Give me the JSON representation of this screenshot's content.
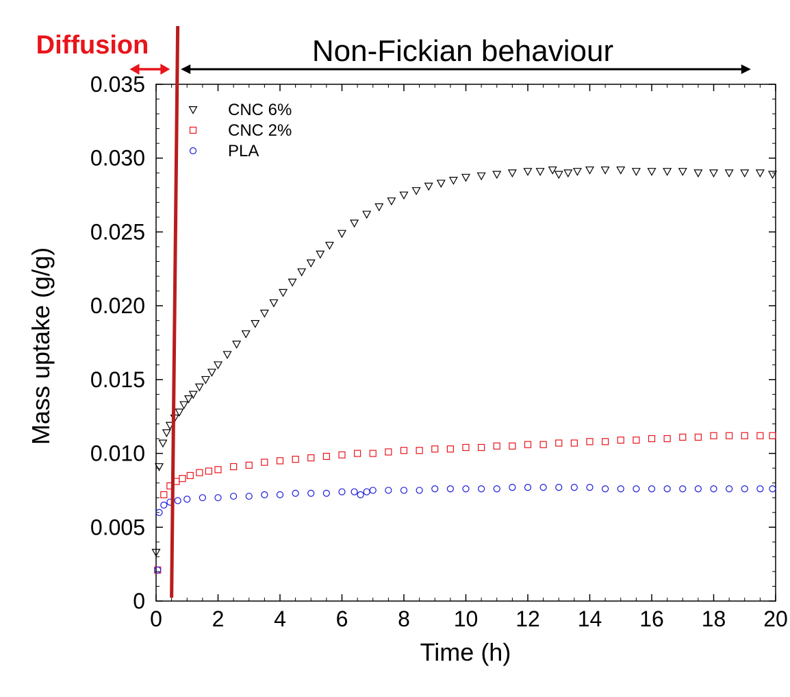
{
  "chart_data": {
    "type": "scatter",
    "title": "",
    "xlabel": "Time (h)",
    "ylabel": "Mass uptake (g/g)",
    "xlim": [
      0,
      20
    ],
    "ylim": [
      0,
      0.035
    ],
    "x_ticks": [
      0,
      2,
      4,
      6,
      8,
      10,
      12,
      14,
      16,
      18,
      20
    ],
    "x_tick_labels": [
      "0",
      "2",
      "4",
      "6",
      "8",
      "10",
      "12",
      "14",
      "16",
      "18",
      "20"
    ],
    "y_ticks": [
      0,
      0.005,
      0.01,
      0.015,
      0.02,
      0.025,
      0.03,
      0.035
    ],
    "y_tick_labels": [
      "0",
      "0.005",
      "0.010",
      "0.015",
      "0.020",
      "0.025",
      "0.030",
      "0.035"
    ],
    "grid": false,
    "legend_position": "top-left",
    "series": [
      {
        "name": "CNC 6%",
        "marker": "triangle-down",
        "color": "#000000",
        "points": [
          [
            0.0,
            0.0033
          ],
          [
            0.1,
            0.0091
          ],
          [
            0.22,
            0.0107
          ],
          [
            0.34,
            0.0114
          ],
          [
            0.45,
            0.0119
          ],
          [
            0.6,
            0.0124
          ],
          [
            0.75,
            0.0128
          ],
          [
            0.9,
            0.0133
          ],
          [
            1.05,
            0.0137
          ],
          [
            1.2,
            0.014
          ],
          [
            1.4,
            0.0145
          ],
          [
            1.6,
            0.015
          ],
          [
            1.8,
            0.0155
          ],
          [
            2.0,
            0.016
          ],
          [
            2.3,
            0.0167
          ],
          [
            2.6,
            0.0174
          ],
          [
            2.9,
            0.0181
          ],
          [
            3.2,
            0.0188
          ],
          [
            3.5,
            0.0195
          ],
          [
            3.8,
            0.0202
          ],
          [
            4.1,
            0.0209
          ],
          [
            4.4,
            0.0216
          ],
          [
            4.7,
            0.0223
          ],
          [
            5.0,
            0.0229
          ],
          [
            5.3,
            0.0235
          ],
          [
            5.6,
            0.0241
          ],
          [
            6.0,
            0.0249
          ],
          [
            6.4,
            0.0256
          ],
          [
            6.8,
            0.0262
          ],
          [
            7.2,
            0.0267
          ],
          [
            7.6,
            0.0271
          ],
          [
            8.0,
            0.0275
          ],
          [
            8.4,
            0.0278
          ],
          [
            8.8,
            0.0281
          ],
          [
            9.2,
            0.0283
          ],
          [
            9.6,
            0.0285
          ],
          [
            10.0,
            0.0287
          ],
          [
            10.5,
            0.0288
          ],
          [
            11.0,
            0.0289
          ],
          [
            11.5,
            0.029
          ],
          [
            12.0,
            0.0291
          ],
          [
            12.4,
            0.0291
          ],
          [
            12.8,
            0.0292
          ],
          [
            13.0,
            0.0289
          ],
          [
            13.3,
            0.029
          ],
          [
            13.6,
            0.0291
          ],
          [
            14.0,
            0.0292
          ],
          [
            14.5,
            0.0292
          ],
          [
            15.0,
            0.0292
          ],
          [
            15.5,
            0.0291
          ],
          [
            16.0,
            0.0291
          ],
          [
            16.5,
            0.0291
          ],
          [
            17.0,
            0.0291
          ],
          [
            17.5,
            0.029
          ],
          [
            18.0,
            0.029
          ],
          [
            18.5,
            0.029
          ],
          [
            19.0,
            0.029
          ],
          [
            19.5,
            0.029
          ],
          [
            19.9,
            0.0289
          ]
        ]
      },
      {
        "name": "CNC 2%",
        "marker": "square",
        "color": "#e8141b",
        "points": [
          [
            0.05,
            0.0021
          ],
          [
            0.25,
            0.0072
          ],
          [
            0.45,
            0.0078
          ],
          [
            0.65,
            0.0081
          ],
          [
            0.85,
            0.0083
          ],
          [
            1.1,
            0.0085
          ],
          [
            1.4,
            0.0087
          ],
          [
            1.7,
            0.0088
          ],
          [
            2.0,
            0.0089
          ],
          [
            2.5,
            0.0091
          ],
          [
            3.0,
            0.0092
          ],
          [
            3.5,
            0.0094
          ],
          [
            4.0,
            0.0095
          ],
          [
            4.5,
            0.0096
          ],
          [
            5.0,
            0.0097
          ],
          [
            5.5,
            0.0098
          ],
          [
            6.0,
            0.0099
          ],
          [
            6.5,
            0.01
          ],
          [
            7.0,
            0.01
          ],
          [
            7.5,
            0.0101
          ],
          [
            8.0,
            0.0102
          ],
          [
            8.5,
            0.0102
          ],
          [
            9.0,
            0.0103
          ],
          [
            9.5,
            0.0103
          ],
          [
            10.0,
            0.0104
          ],
          [
            10.5,
            0.0104
          ],
          [
            11.0,
            0.0105
          ],
          [
            11.5,
            0.0105
          ],
          [
            12.0,
            0.0106
          ],
          [
            12.5,
            0.0106
          ],
          [
            13.0,
            0.0107
          ],
          [
            13.5,
            0.0107
          ],
          [
            14.0,
            0.0108
          ],
          [
            14.5,
            0.0108
          ],
          [
            15.0,
            0.0109
          ],
          [
            15.5,
            0.0109
          ],
          [
            16.0,
            0.011
          ],
          [
            16.5,
            0.011
          ],
          [
            17.0,
            0.0111
          ],
          [
            17.5,
            0.0111
          ],
          [
            18.0,
            0.0112
          ],
          [
            18.5,
            0.0112
          ],
          [
            19.0,
            0.0112
          ],
          [
            19.5,
            0.0112
          ],
          [
            19.9,
            0.0112
          ]
        ]
      },
      {
        "name": "PLA",
        "marker": "circle",
        "color": "#1a1adb",
        "points": [
          [
            0.05,
            0.0021
          ],
          [
            0.1,
            0.006
          ],
          [
            0.25,
            0.0065
          ],
          [
            0.45,
            0.0067
          ],
          [
            0.7,
            0.0068
          ],
          [
            1.0,
            0.0069
          ],
          [
            1.5,
            0.007
          ],
          [
            2.0,
            0.007
          ],
          [
            2.5,
            0.0071
          ],
          [
            3.0,
            0.0071
          ],
          [
            3.5,
            0.0072
          ],
          [
            4.0,
            0.0072
          ],
          [
            4.5,
            0.0073
          ],
          [
            5.0,
            0.0073
          ],
          [
            5.5,
            0.0073
          ],
          [
            6.0,
            0.0074
          ],
          [
            6.4,
            0.0074
          ],
          [
            6.6,
            0.0072
          ],
          [
            6.8,
            0.0074
          ],
          [
            7.0,
            0.0075
          ],
          [
            7.5,
            0.0075
          ],
          [
            8.0,
            0.0075
          ],
          [
            8.5,
            0.0075
          ],
          [
            9.0,
            0.0076
          ],
          [
            9.5,
            0.0076
          ],
          [
            10.0,
            0.0076
          ],
          [
            10.5,
            0.0076
          ],
          [
            11.0,
            0.0076
          ],
          [
            11.5,
            0.0077
          ],
          [
            12.0,
            0.0077
          ],
          [
            12.5,
            0.0077
          ],
          [
            13.0,
            0.0077
          ],
          [
            13.5,
            0.0077
          ],
          [
            14.0,
            0.0077
          ],
          [
            14.5,
            0.0076
          ],
          [
            15.0,
            0.0076
          ],
          [
            15.5,
            0.0076
          ],
          [
            16.0,
            0.0076
          ],
          [
            16.5,
            0.0076
          ],
          [
            17.0,
            0.0076
          ],
          [
            17.5,
            0.0076
          ],
          [
            18.0,
            0.0076
          ],
          [
            18.5,
            0.0076
          ],
          [
            19.0,
            0.0076
          ],
          [
            19.5,
            0.0076
          ],
          [
            19.9,
            0.0076
          ]
        ]
      }
    ],
    "annotations": {
      "divider_x": 0.5,
      "divider_color": "#b81d1d",
      "diffusion_label": "Diffusion",
      "diffusion_color": "#e8141b",
      "diffusion_arrow_x": [
        -0.85,
        0.45
      ],
      "non_fickian_label": "Non-Fickian behaviour",
      "non_fickian_color": "#000000",
      "non_fickian_arrow_x": [
        0.8,
        19.2
      ]
    }
  }
}
